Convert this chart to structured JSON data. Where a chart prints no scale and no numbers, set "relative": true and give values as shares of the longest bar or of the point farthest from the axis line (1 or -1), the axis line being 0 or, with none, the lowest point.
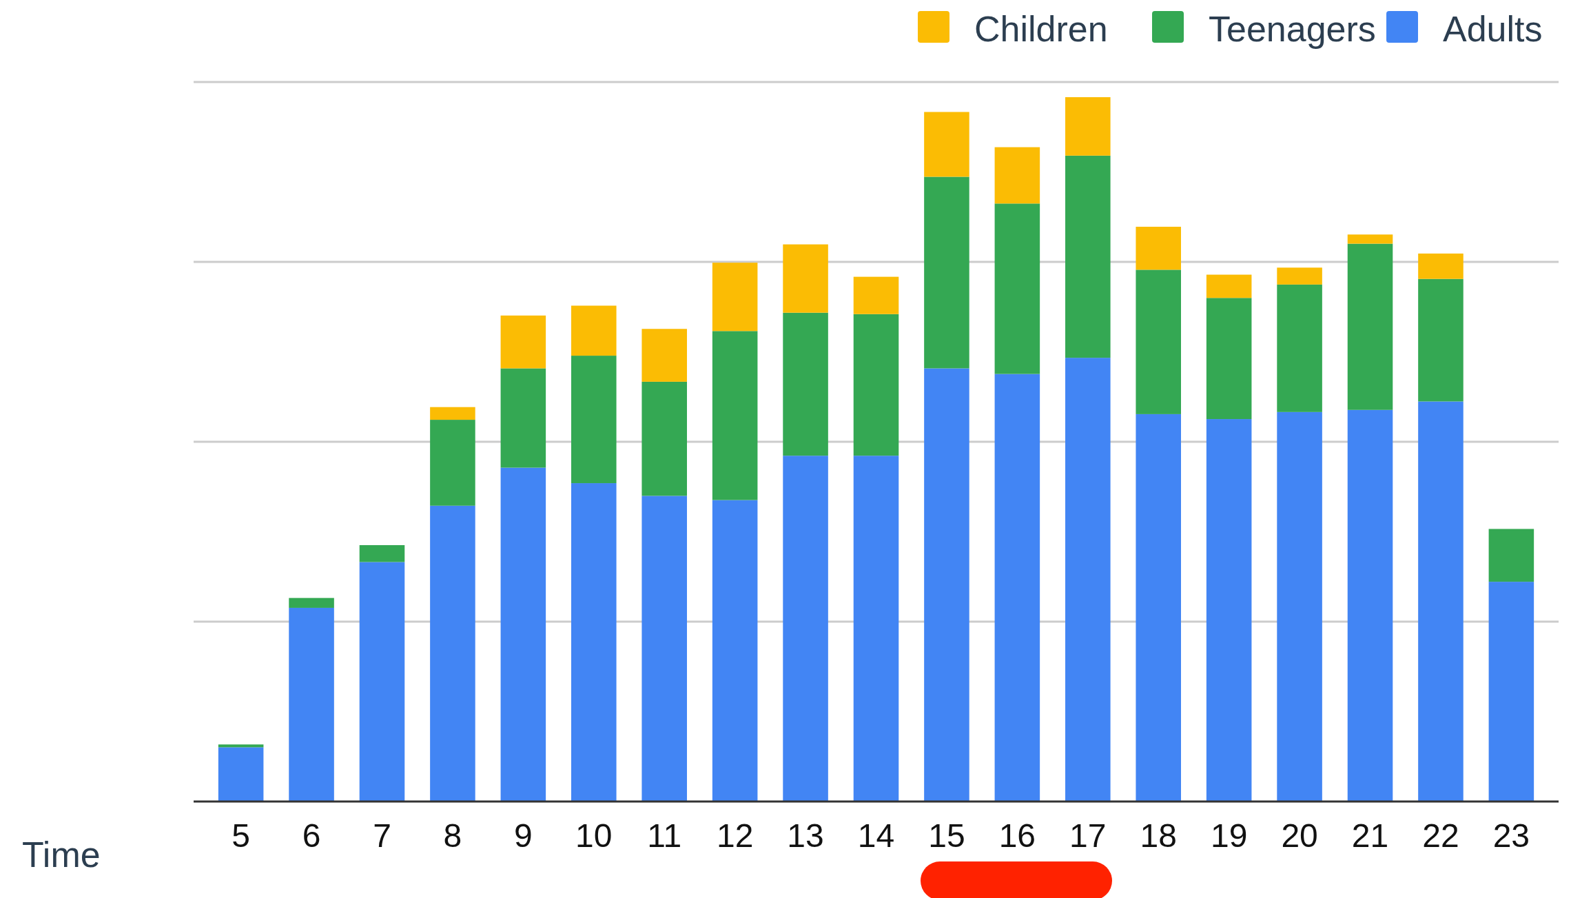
{
  "chart_data": {
    "type": "bar",
    "stacked": true,
    "relative": true,
    "xlabel": "Time",
    "grid": "y",
    "legend": "top right",
    "categories": [
      "5",
      "6",
      "7",
      "8",
      "9",
      "10",
      "11",
      "12",
      "13",
      "14",
      "15",
      "16",
      "17",
      "18",
      "19",
      "20",
      "21",
      "22",
      "23"
    ],
    "series": [
      {
        "name": "Adults",
        "color": "#4285f4",
        "values": [
          0.077,
          0.275,
          0.34,
          0.42,
          0.474,
          0.452,
          0.434,
          0.428,
          0.491,
          0.491,
          0.615,
          0.607,
          0.63,
          0.55,
          0.543,
          0.553,
          0.556,
          0.568,
          0.312
        ]
      },
      {
        "name": "Teenagers",
        "color": "#34a853",
        "values": [
          0.004,
          0.014,
          0.024,
          0.122,
          0.141,
          0.181,
          0.162,
          0.24,
          0.203,
          0.201,
          0.272,
          0.242,
          0.287,
          0.205,
          0.172,
          0.181,
          0.236,
          0.174,
          0.075
        ]
      },
      {
        "name": "Children",
        "color": "#fbbc04",
        "values": [
          0,
          0,
          0,
          0.018,
          0.075,
          0.071,
          0.075,
          0.097,
          0.097,
          0.053,
          0.092,
          0.08,
          0.083,
          0.061,
          0.033,
          0.024,
          0.013,
          0.036,
          0
        ]
      }
    ]
  }
}
